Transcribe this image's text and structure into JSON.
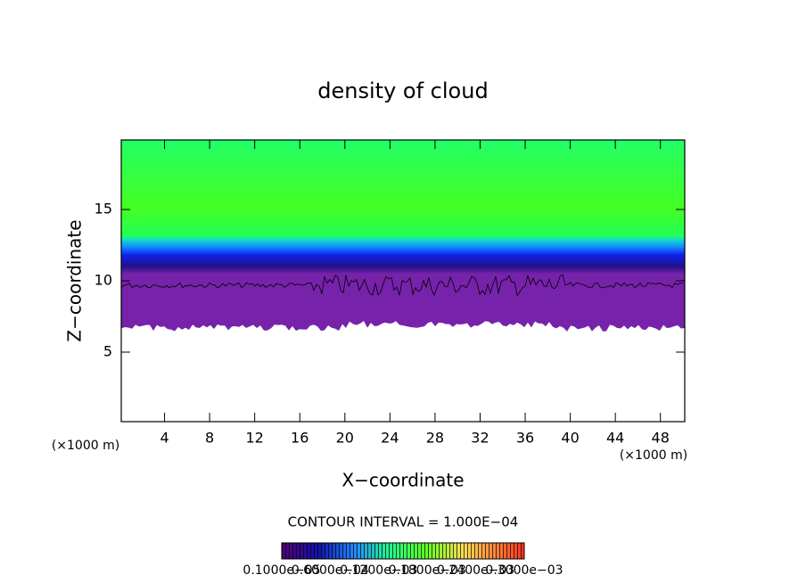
{
  "chart_data": {
    "type": "contour",
    "title": "density of cloud",
    "x_label": "X−coordinate",
    "y_label": "Z−coordinate",
    "x_unit": "(×1000 m)",
    "y_unit": "(×1000 m)",
    "xlim": [
      0,
      50
    ],
    "xticks": [
      4,
      8,
      12,
      16,
      20,
      24,
      28,
      32,
      36,
      40,
      44,
      48
    ],
    "ylim": [
      0,
      20
    ],
    "yticks": [
      5,
      10,
      15
    ],
    "contour_interval": "CONTOUR INTERVAL = 1.000E−04",
    "colorbar_labels": [
      "0.1000e−05",
      "0.6000e−04",
      "0.1200e−03",
      "0.1800e−03",
      "0.2400e−03",
      "0.3000e−03"
    ]
  }
}
